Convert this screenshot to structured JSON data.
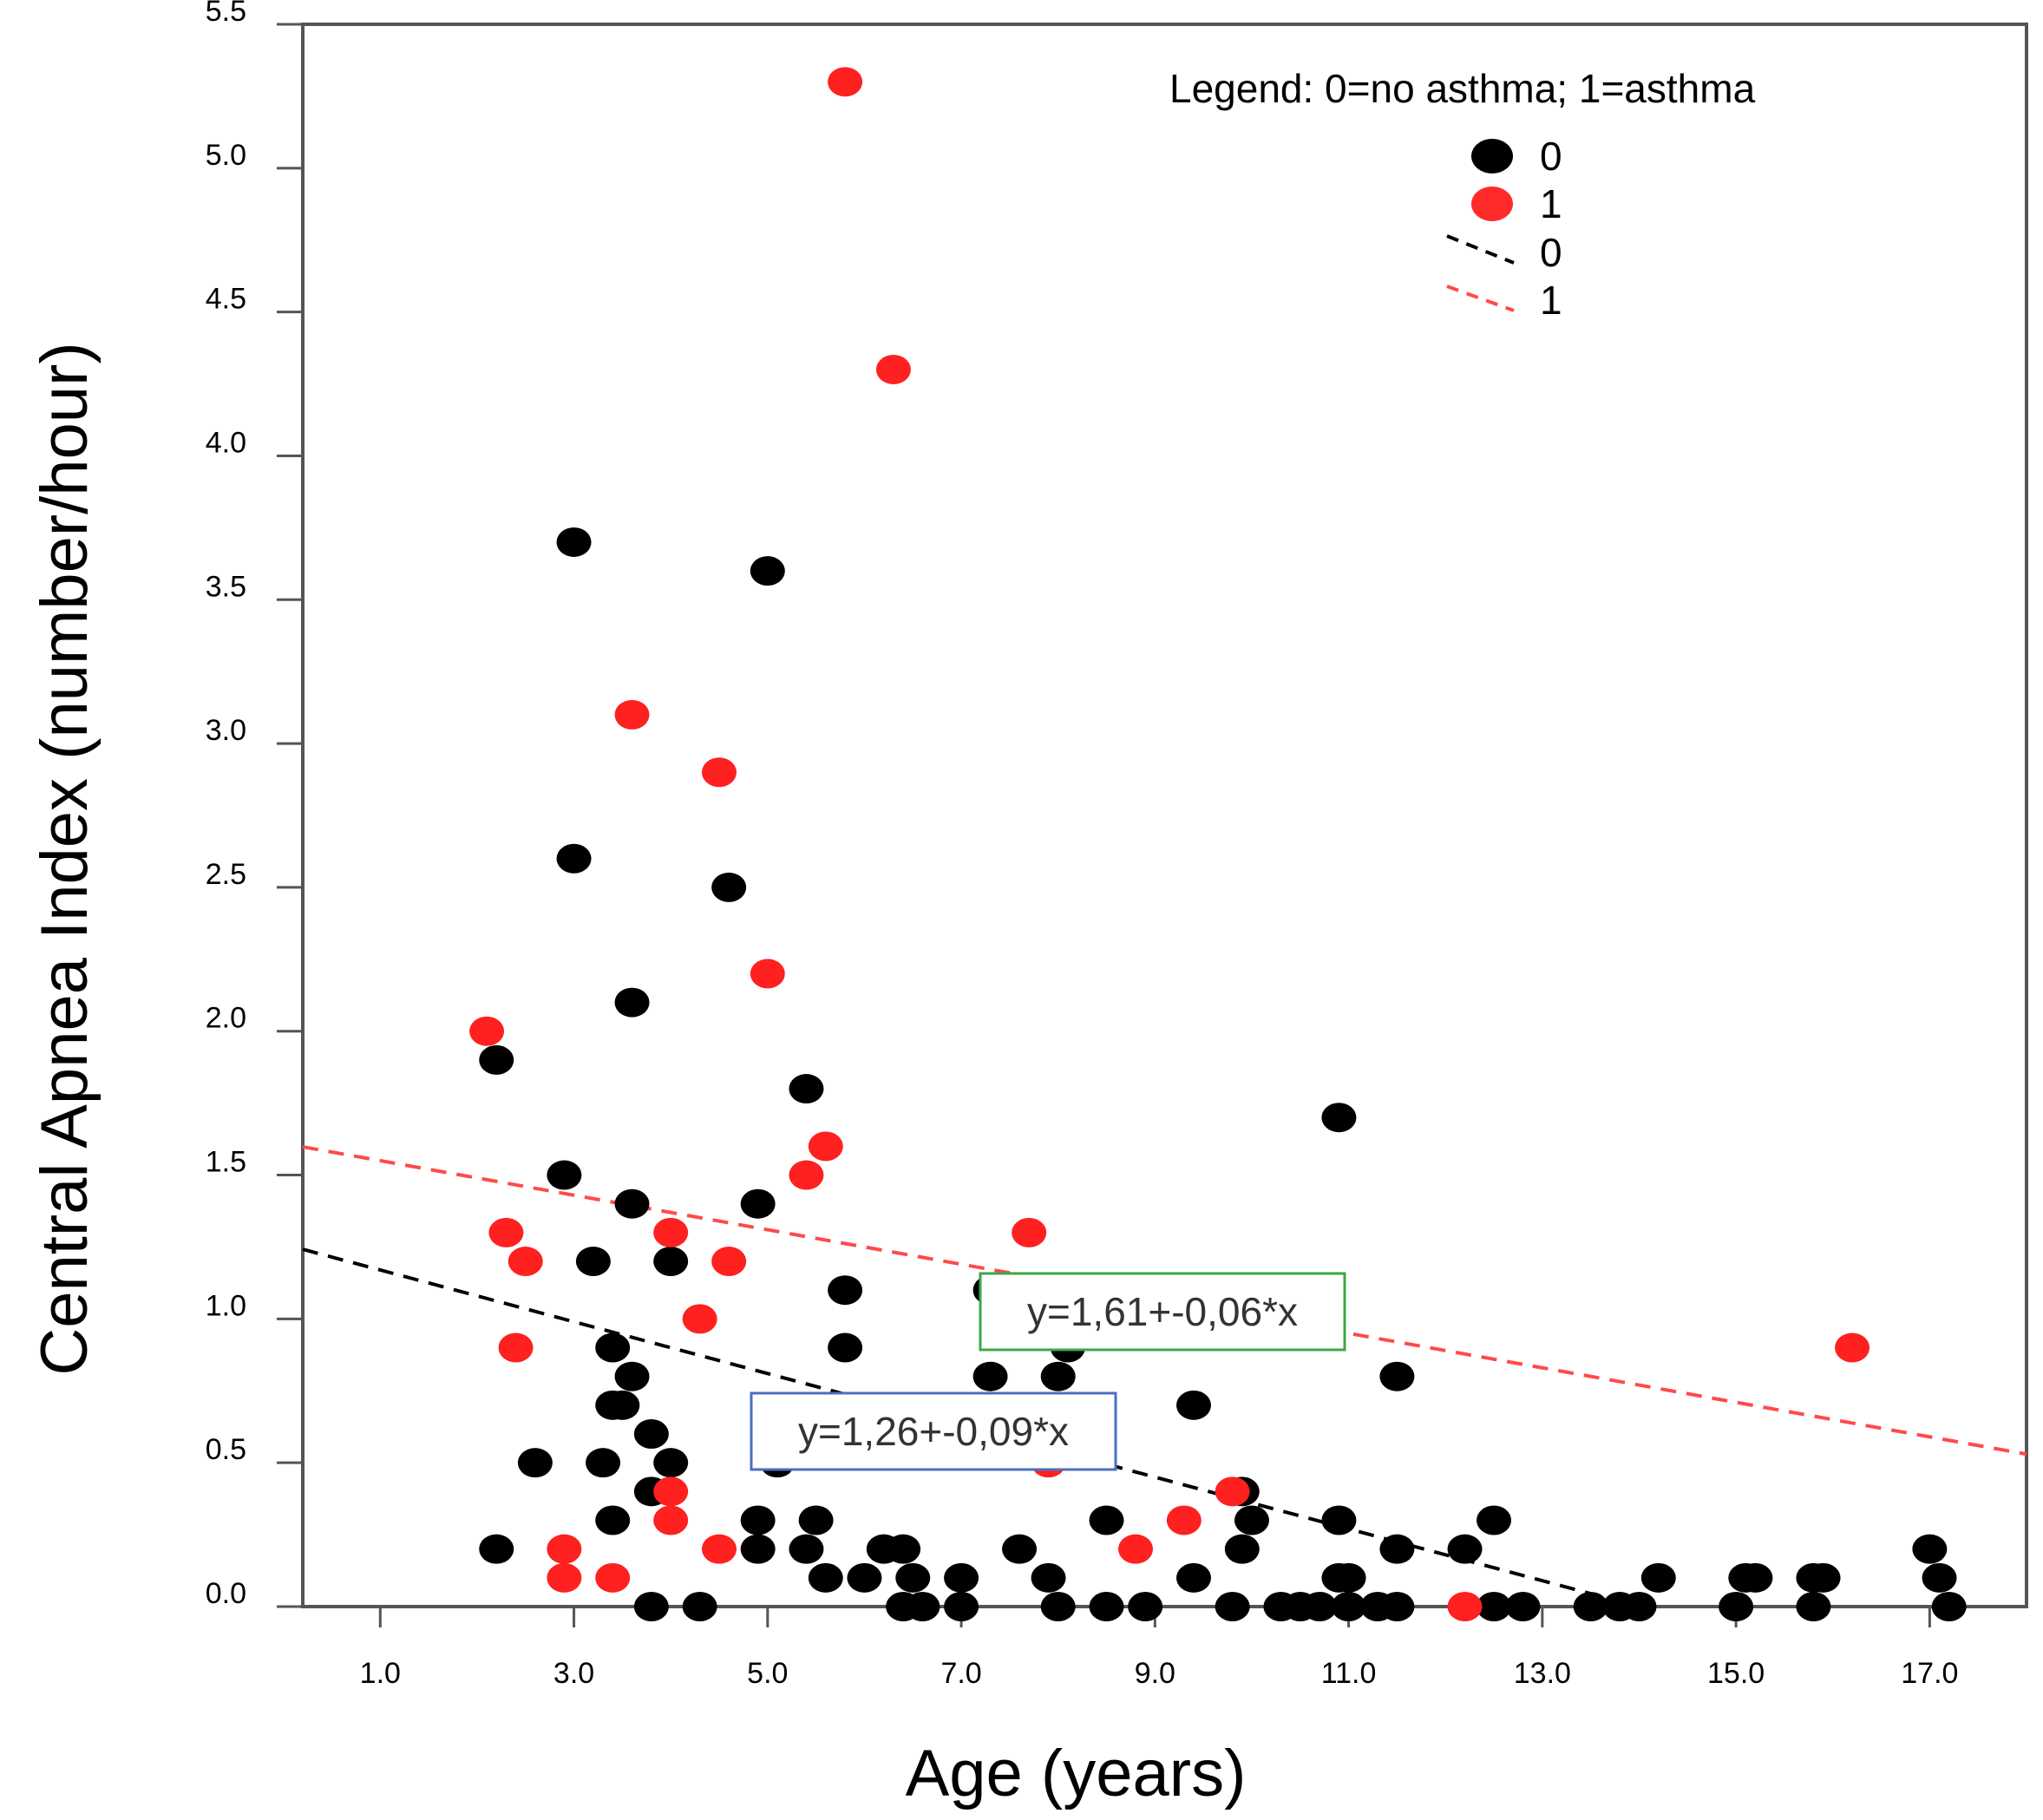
{
  "chart_data": {
    "type": "scatter",
    "title": "",
    "xlabel": "Age (years)",
    "ylabel": "Central Apnea Index (number/hour)",
    "xlim": [
      0.2,
      18.0
    ],
    "ylim": [
      0.0,
      5.5
    ],
    "xticks": [
      "1.0",
      "3.0",
      "5.0",
      "7.0",
      "9.0",
      "11.0",
      "13.0",
      "15.0",
      "17.0"
    ],
    "xtick_values": [
      1,
      3,
      5,
      7,
      9,
      11,
      13,
      15,
      17
    ],
    "yticks": [
      "0.0",
      "0.5",
      "1.0",
      "1.5",
      "2.0",
      "2.5",
      "3.0",
      "3.5",
      "4.0",
      "4.5",
      "5.0",
      "5.5"
    ],
    "ytick_values": [
      0,
      0.5,
      1,
      1.5,
      2,
      2.5,
      3,
      3.5,
      4,
      4.5,
      5,
      5.5
    ],
    "legend": {
      "title": "Legend:  0=no asthma; 1=asthma",
      "entries": [
        "0",
        "1",
        "0",
        "1"
      ]
    },
    "series": [
      {
        "name": "0",
        "color": "#000000",
        "points": [
          [
            2.2,
            1.9
          ],
          [
            2.2,
            0.2
          ],
          [
            2.6,
            0.5
          ],
          [
            2.9,
            1.5
          ],
          [
            3.0,
            3.7
          ],
          [
            3.0,
            2.6
          ],
          [
            3.2,
            1.2
          ],
          [
            3.3,
            0.5
          ],
          [
            3.4,
            0.9
          ],
          [
            3.4,
            0.7
          ],
          [
            3.5,
            0.7
          ],
          [
            3.6,
            1.4
          ],
          [
            3.6,
            0.8
          ],
          [
            3.4,
            0.3
          ],
          [
            3.6,
            2.1
          ],
          [
            3.8,
            0.6
          ],
          [
            3.8,
            0.4
          ],
          [
            4.0,
            1.2
          ],
          [
            4.0,
            0.5
          ],
          [
            3.8,
            0.0
          ],
          [
            4.3,
            0.0
          ],
          [
            4.6,
            2.5
          ],
          [
            4.9,
            1.4
          ],
          [
            4.9,
            0.3
          ],
          [
            4.9,
            0.2
          ],
          [
            5.0,
            3.6
          ],
          [
            5.1,
            0.5
          ],
          [
            5.4,
            1.8
          ],
          [
            5.4,
            0.2
          ],
          [
            5.5,
            0.3
          ],
          [
            5.6,
            0.1
          ],
          [
            5.8,
            1.1
          ],
          [
            5.8,
            0.9
          ],
          [
            6.0,
            0.1
          ],
          [
            6.2,
            0.2
          ],
          [
            6.4,
            0.2
          ],
          [
            6.5,
            0.1
          ],
          [
            6.4,
            0.0
          ],
          [
            6.6,
            0.0
          ],
          [
            7.0,
            0.1
          ],
          [
            7.0,
            0.0
          ],
          [
            7.3,
            1.1
          ],
          [
            7.3,
            0.8
          ],
          [
            7.6,
            0.2
          ],
          [
            7.9,
            0.1
          ],
          [
            8.0,
            0.8
          ],
          [
            8.1,
            0.9
          ],
          [
            8.0,
            0.0
          ],
          [
            8.5,
            0.3
          ],
          [
            8.5,
            0.0
          ],
          [
            8.9,
            0.0
          ],
          [
            9.4,
            0.7
          ],
          [
            9.4,
            0.1
          ],
          [
            9.8,
            0.0
          ],
          [
            9.9,
            0.4
          ],
          [
            9.9,
            0.2
          ],
          [
            10.0,
            0.3
          ],
          [
            10.3,
            0.0
          ],
          [
            10.5,
            0.0
          ],
          [
            10.7,
            0.0
          ],
          [
            10.9,
            1.7
          ],
          [
            10.9,
            0.3
          ],
          [
            10.9,
            0.1
          ],
          [
            11.0,
            0.1
          ],
          [
            11.0,
            0.0
          ],
          [
            11.3,
            0.0
          ],
          [
            11.5,
            0.8
          ],
          [
            11.5,
            0.2
          ],
          [
            11.5,
            0.0
          ],
          [
            12.2,
            0.2
          ],
          [
            12.5,
            0.3
          ],
          [
            12.5,
            0.0
          ],
          [
            12.8,
            0.0
          ],
          [
            13.5,
            0.0
          ],
          [
            13.8,
            0.0
          ],
          [
            14.0,
            0.0
          ],
          [
            14.2,
            0.1
          ],
          [
            15.0,
            0.0
          ],
          [
            15.1,
            0.1
          ],
          [
            15.2,
            0.1
          ],
          [
            15.8,
            0.1
          ],
          [
            15.9,
            0.1
          ],
          [
            15.8,
            0.0
          ],
          [
            17.0,
            0.2
          ],
          [
            17.1,
            0.1
          ],
          [
            17.2,
            0.0
          ]
        ],
        "fit": {
          "intercept": 1.26,
          "slope": -0.09,
          "label": "y=1,26+-0,09*x"
        }
      },
      {
        "name": "1",
        "color": "#ff2020",
        "points": [
          [
            2.1,
            2.0
          ],
          [
            2.3,
            1.3
          ],
          [
            2.4,
            0.9
          ],
          [
            2.5,
            1.2
          ],
          [
            2.9,
            0.2
          ],
          [
            2.9,
            0.1
          ],
          [
            3.4,
            0.1
          ],
          [
            3.6,
            3.1
          ],
          [
            4.0,
            1.3
          ],
          [
            4.0,
            0.4
          ],
          [
            4.0,
            0.3
          ],
          [
            4.3,
            1.0
          ],
          [
            4.5,
            2.9
          ],
          [
            4.5,
            0.2
          ],
          [
            4.6,
            1.2
          ],
          [
            5.0,
            2.2
          ],
          [
            5.4,
            1.5
          ],
          [
            5.6,
            1.6
          ],
          [
            5.8,
            5.3
          ],
          [
            6.3,
            4.3
          ],
          [
            7.7,
            1.3
          ],
          [
            7.9,
            0.5
          ],
          [
            8.8,
            0.2
          ],
          [
            9.3,
            0.3
          ],
          [
            9.8,
            0.4
          ],
          [
            12.2,
            0.0
          ],
          [
            16.2,
            0.9
          ]
        ],
        "fit": {
          "intercept": 1.61,
          "slope": -0.06,
          "label": "y=1,61+-0,06*x"
        }
      }
    ]
  }
}
